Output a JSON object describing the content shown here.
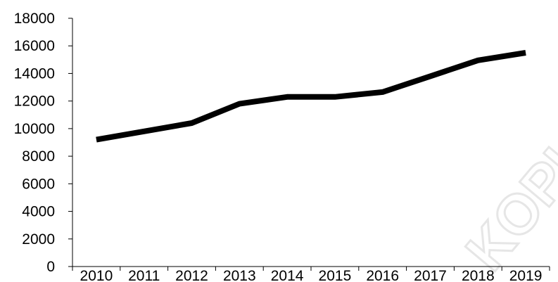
{
  "chart_data": {
    "type": "line",
    "title": "",
    "xlabel": "",
    "ylabel": "",
    "categories": [
      "2010",
      "2011",
      "2012",
      "2013",
      "2014",
      "2015",
      "2016",
      "2017",
      "2018",
      "2019"
    ],
    "series": [
      {
        "values": [
          9200,
          9800,
          10400,
          11800,
          12300,
          12300,
          12650,
          13800,
          14950,
          15500
        ],
        "color": "#000000"
      }
    ],
    "ylim": [
      0,
      18000
    ],
    "yticks": [
      "0",
      "2000",
      "4000",
      "6000",
      "8000",
      "10000",
      "12000",
      "14000",
      "16000",
      "18000"
    ],
    "grid": false,
    "legend": "none"
  },
  "watermark": {
    "text": "KOPI",
    "color": "#e6e6e6"
  }
}
